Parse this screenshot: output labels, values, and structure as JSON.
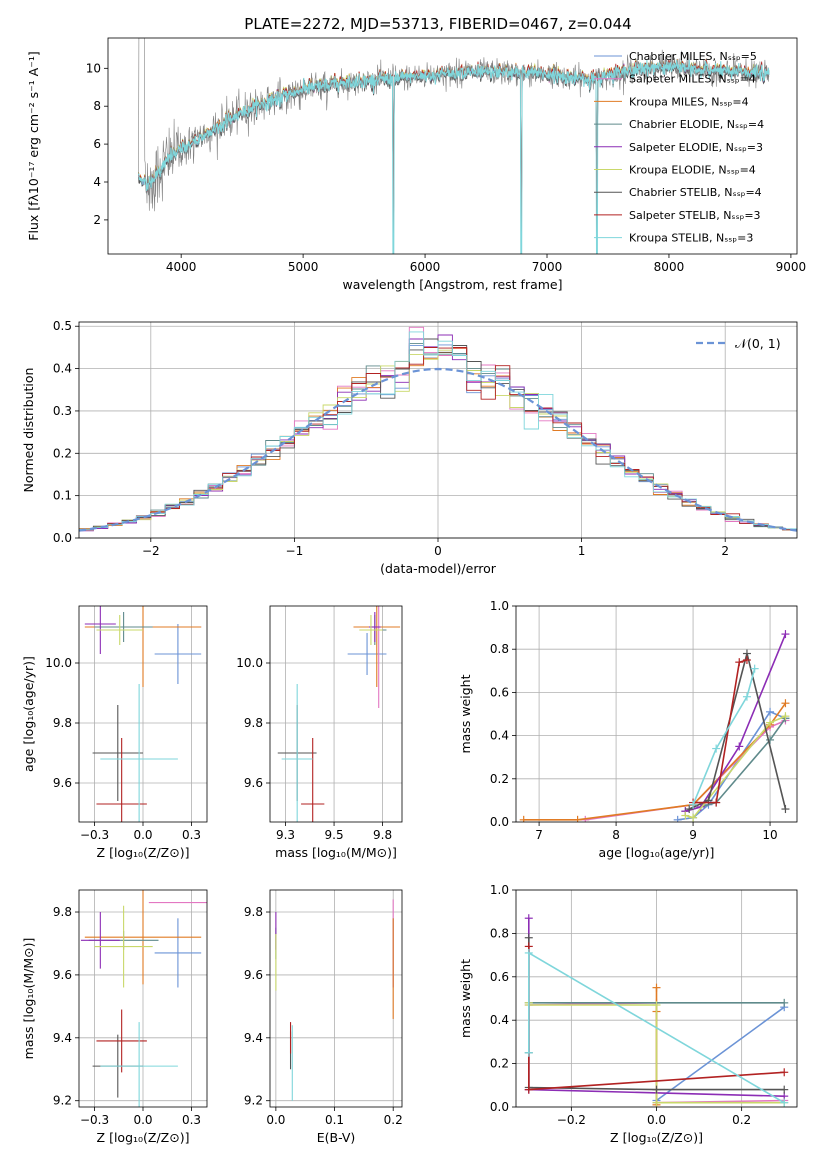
{
  "title": "PLATE=2272, MJD=53713, FIBERID=0467, z=0.044",
  "model_colors": [
    "#6b93d6",
    "#e377c2",
    "#e07b24",
    "#5f8a8b",
    "#8c2db5",
    "#c9d86a",
    "#555555",
    "#b22222",
    "#7fd6db"
  ],
  "chart_data": [
    {
      "id": "spectrum",
      "type": "line",
      "xlabel": "wavelength [Angstrom, rest frame]",
      "ylabel": "Flux [fλ10⁻¹⁷ erg cm⁻² s⁻¹ A⁻¹]",
      "xlim": [
        3400,
        9050
      ],
      "ylim": [
        0.2,
        11.6
      ],
      "xticks": [
        4000,
        5000,
        6000,
        7000,
        8000,
        9000
      ],
      "yticks": [
        2,
        4,
        6,
        8,
        10
      ],
      "legend_position": "top-right",
      "series": [
        {
          "name": "Chabrier MILES, Nₛₛₚ=5"
        },
        {
          "name": "Salpeter MILES, Nₛₛₚ=4"
        },
        {
          "name": "Kroupa MILES, Nₛₛₚ=4"
        },
        {
          "name": "Chabrier ELODIE, Nₛₛₚ=4"
        },
        {
          "name": "Salpeter ELODIE, Nₛₛₚ=3"
        },
        {
          "name": "Kroupa ELODIE, Nₛₛₚ=4"
        },
        {
          "name": "Chabrier STELIB, Nₛₛₚ=4"
        },
        {
          "name": "Salpeter STELIB, Nₛₛₚ=3"
        },
        {
          "name": "Kroupa STELIB, Nₛₛₚ=3"
        }
      ],
      "continuum": {
        "x": [
          3650,
          3750,
          3900,
          4000,
          4200,
          4400,
          4600,
          4800,
          5000,
          5300,
          5600,
          6000,
          6300,
          6600,
          7000,
          7200,
          7400,
          7600,
          7800,
          8000,
          8300,
          8600,
          8820
        ],
        "y": [
          4.2,
          3.9,
          5.3,
          5.7,
          6.5,
          7.3,
          8.0,
          8.4,
          8.9,
          9.2,
          9.4,
          9.6,
          9.8,
          9.8,
          9.7,
          9.5,
          9.4,
          9.8,
          10.0,
          10.1,
          9.9,
          9.8,
          9.7
        ]
      },
      "observed_color": "#808080",
      "model_color": "#7fd6db"
    },
    {
      "id": "residuals",
      "type": "histogram",
      "xlabel": "(data-model)/error",
      "ylabel": "Normed distribution",
      "xlim": [
        -2.5,
        2.5
      ],
      "ylim": [
        0,
        0.51
      ],
      "xticks": [
        -2,
        -1,
        0,
        1,
        2
      ],
      "yticks": [
        0.0,
        0.1,
        0.2,
        0.3,
        0.4,
        0.5
      ],
      "bin_width": 0.1,
      "bin_start": -2.5,
      "reference": {
        "name": "𝒩(0, 1)",
        "mean": 0,
        "sigma": 1,
        "color": "#6b93d6"
      },
      "legend_position": "top-right",
      "grid": true
    },
    {
      "id": "age-Z",
      "type": "scatter-errorbar",
      "xlabel": "Z [log₁₀(Z/Z⊙)]",
      "ylabel": "age  [log₁₀(age/yr)]",
      "xlim": [
        -0.33,
        0.33
      ],
      "ylim": [
        9.47,
        10.19
      ],
      "xticks": [
        -0.25,
        0.0,
        0.25
      ],
      "yticks": [
        9.6,
        9.8,
        10.0
      ],
      "grid": true,
      "points": [
        {
          "x": 0.18,
          "y": 10.03,
          "xerr": 0.12,
          "yerr": 0.1,
          "c": 0
        },
        {
          "x": 0.18,
          "y": 10.12,
          "xerr": 0.12,
          "yerr": 0.0,
          "c": 1
        },
        {
          "x": 0.0,
          "y": 10.12,
          "xerr": 0.3,
          "yerr": 0.2,
          "c": 2
        },
        {
          "x": -0.1,
          "y": 10.12,
          "xerr": 0.15,
          "yerr": 0.05,
          "c": 3
        },
        {
          "x": -0.22,
          "y": 10.13,
          "xerr": 0.08,
          "yerr": 0.1,
          "c": 4
        },
        {
          "x": -0.12,
          "y": 10.11,
          "xerr": 0.12,
          "yerr": 0.05,
          "c": 5
        },
        {
          "x": -0.13,
          "y": 9.7,
          "xerr": 0.13,
          "yerr": 0.16,
          "c": 6
        },
        {
          "x": -0.11,
          "y": 9.53,
          "xerr": 0.13,
          "yerr": 0.22,
          "c": 7
        },
        {
          "x": -0.02,
          "y": 9.68,
          "xerr": 0.2,
          "yerr": 0.25,
          "c": 8
        }
      ]
    },
    {
      "id": "age-mass",
      "type": "scatter-errorbar",
      "xlabel": "mass [log₁₀(M/M⊙)]",
      "ylabel": "",
      "xlim": [
        9.17,
        9.85
      ],
      "ylim": [
        9.47,
        10.19
      ],
      "xticks": [
        9.25,
        9.5,
        9.75
      ],
      "yticks": [
        9.6,
        9.8,
        10.0
      ],
      "grid": true,
      "points": [
        {
          "x": 9.67,
          "y": 10.03,
          "xerr": 0.1,
          "yerr": 0.07,
          "c": 0
        },
        {
          "x": 9.73,
          "y": 10.12,
          "xerr": 0.1,
          "yerr": 0.27,
          "c": 1
        },
        {
          "x": 9.72,
          "y": 10.12,
          "xerr": 0.12,
          "yerr": 0.2,
          "c": 2
        },
        {
          "x": 9.71,
          "y": 10.11,
          "xerr": 0.06,
          "yerr": 0.05,
          "c": 3
        },
        {
          "x": 9.71,
          "y": 10.12,
          "xerr": 0.03,
          "yerr": 0.05,
          "c": 4
        },
        {
          "x": 9.69,
          "y": 10.11,
          "xerr": 0.06,
          "yerr": 0.05,
          "c": 5
        },
        {
          "x": 9.31,
          "y": 9.7,
          "xerr": 0.1,
          "yerr": 0.16,
          "c": 6
        },
        {
          "x": 9.39,
          "y": 9.53,
          "xerr": 0.06,
          "yerr": 0.22,
          "c": 7
        },
        {
          "x": 9.31,
          "y": 9.68,
          "xerr": 0.08,
          "yerr": 0.25,
          "c": 8
        }
      ]
    },
    {
      "id": "weight-age",
      "type": "line",
      "xlabel": "age  [log₁₀(age/yr)]",
      "ylabel": "mass weight",
      "xlim": [
        6.7,
        10.35
      ],
      "ylim": [
        0,
        1.0
      ],
      "xticks": [
        7,
        8,
        9,
        10
      ],
      "yticks": [
        0.0,
        0.2,
        0.4,
        0.6,
        0.8,
        1.0
      ],
      "grid": true,
      "series": [
        {
          "c": 0,
          "x": [
            8.8,
            9.0,
            9.2,
            10.0,
            10.2
          ],
          "y": [
            0.01,
            0.02,
            0.08,
            0.51,
            0.48
          ]
        },
        {
          "c": 1,
          "x": [
            7.6,
            9.0,
            10.0,
            10.2
          ],
          "y": [
            0.01,
            0.08,
            0.44,
            0.47
          ]
        },
        {
          "c": 2,
          "x": [
            6.8,
            7.5,
            9.0,
            10.0,
            10.2
          ],
          "y": [
            0.01,
            0.01,
            0.08,
            0.45,
            0.55
          ]
        },
        {
          "c": 3,
          "x": [
            8.9,
            9.3,
            10.0,
            10.2
          ],
          "y": [
            0.05,
            0.09,
            0.38,
            0.48
          ]
        },
        {
          "c": 4,
          "x": [
            8.9,
            9.1,
            9.6,
            10.2
          ],
          "y": [
            0.05,
            0.07,
            0.35,
            0.87
          ]
        },
        {
          "c": 5,
          "x": [
            8.9,
            9.0,
            10.0,
            10.2
          ],
          "y": [
            0.03,
            0.02,
            0.46,
            0.49
          ]
        },
        {
          "c": 6,
          "x": [
            8.95,
            9.2,
            9.7,
            10.2
          ],
          "y": [
            0.06,
            0.1,
            0.78,
            0.06
          ]
        },
        {
          "c": 7,
          "x": [
            9.0,
            9.3,
            9.6,
            9.7
          ],
          "y": [
            0.09,
            0.09,
            0.74,
            0.75
          ]
        },
        {
          "c": 8,
          "x": [
            9.0,
            9.3,
            9.7,
            9.8
          ],
          "y": [
            0.08,
            0.34,
            0.58,
            0.71
          ]
        }
      ]
    },
    {
      "id": "mass-Z",
      "type": "scatter-errorbar",
      "xlabel": "Z [log₁₀(Z/Z⊙)]",
      "ylabel": "mass [log₁₀(M/M⊙)]",
      "xlim": [
        -0.33,
        0.33
      ],
      "ylim": [
        9.18,
        9.87
      ],
      "xticks": [
        -0.25,
        0.0,
        0.25
      ],
      "yticks": [
        9.2,
        9.4,
        9.6,
        9.8
      ],
      "grid": true,
      "points": [
        {
          "x": 0.18,
          "y": 9.67,
          "xerr": 0.12,
          "yerr": 0.11,
          "c": 0
        },
        {
          "x": 0.18,
          "y": 9.83,
          "xerr": 0.15,
          "yerr": 0.0,
          "c": 1
        },
        {
          "x": 0.0,
          "y": 9.72,
          "xerr": 0.3,
          "yerr": 0.15,
          "c": 2
        },
        {
          "x": -0.1,
          "y": 9.71,
          "xerr": 0.18,
          "yerr": 0.03,
          "c": 3
        },
        {
          "x": -0.22,
          "y": 9.71,
          "xerr": 0.1,
          "yerr": 0.09,
          "c": 4
        },
        {
          "x": -0.1,
          "y": 9.69,
          "xerr": 0.15,
          "yerr": 0.13,
          "c": 5
        },
        {
          "x": -0.13,
          "y": 9.31,
          "xerr": 0.13,
          "yerr": 0.1,
          "c": 6
        },
        {
          "x": -0.11,
          "y": 9.39,
          "xerr": 0.13,
          "yerr": 0.1,
          "c": 7
        },
        {
          "x": -0.02,
          "y": 9.31,
          "xerr": 0.2,
          "yerr": 0.14,
          "c": 8
        }
      ]
    },
    {
      "id": "mass-EBV",
      "type": "scatter-errorbar",
      "xlabel": "E(B-V)",
      "ylabel": "",
      "xlim": [
        -0.01,
        0.215
      ],
      "ylim": [
        9.18,
        9.87
      ],
      "xticks": [
        0.0,
        0.1,
        0.2
      ],
      "yticks": [
        9.2,
        9.4,
        9.6,
        9.8
      ],
      "grid": true,
      "points": [
        {
          "x": 0.2,
          "y": 9.67,
          "xerr": 0,
          "yerr": 0.11,
          "c": 0
        },
        {
          "x": 0.2,
          "y": 9.7,
          "xerr": 0,
          "yerr": 0.14,
          "c": 1
        },
        {
          "x": 0.2,
          "y": 9.62,
          "xerr": 0,
          "yerr": 0.16,
          "c": 2
        },
        {
          "x": 0.0,
          "y": 9.7,
          "xerr": 0,
          "yerr": 0.05,
          "c": 3
        },
        {
          "x": 0.0,
          "y": 9.74,
          "xerr": 0,
          "yerr": 0.06,
          "c": 4
        },
        {
          "x": 0.0,
          "y": 9.64,
          "xerr": 0,
          "yerr": 0.09,
          "c": 5
        },
        {
          "x": 0.025,
          "y": 9.36,
          "xerr": 0,
          "yerr": 0.06,
          "c": 6
        },
        {
          "x": 0.025,
          "y": 9.4,
          "xerr": 0,
          "yerr": 0.05,
          "c": 7
        },
        {
          "x": 0.028,
          "y": 9.32,
          "xerr": 0,
          "yerr": 0.12,
          "c": 8
        }
      ]
    },
    {
      "id": "weight-Z",
      "type": "line",
      "xlabel": "Z [log₁₀(Z/Z⊙)]",
      "ylabel": "mass weight",
      "xlim": [
        -0.33,
        0.33
      ],
      "ylim": [
        0,
        1.0
      ],
      "xticks": [
        -0.2,
        0.0,
        0.2
      ],
      "yticks": [
        0.0,
        0.2,
        0.4,
        0.6,
        0.8,
        1.0
      ],
      "grid": true,
      "series": [
        {
          "c": 0,
          "x": [
            0.0,
            0.3
          ],
          "y": [
            0.03,
            0.46
          ]
        },
        {
          "c": 1,
          "x": [
            -0.3,
            -0.3,
            0.0,
            0.0,
            0.3
          ],
          "y": [
            0.08,
            0.47,
            0.48,
            0.02,
            0.03
          ]
        },
        {
          "c": 2,
          "x": [
            0.0,
            0.0,
            0.0
          ],
          "y": [
            0.01,
            0.44,
            0.55
          ]
        },
        {
          "c": 3,
          "x": [
            -0.3,
            -0.3,
            0.3
          ],
          "y": [
            0.25,
            0.48,
            0.48
          ]
        },
        {
          "c": 4,
          "x": [
            -0.3,
            -0.3,
            0.3
          ],
          "y": [
            0.87,
            0.08,
            0.05
          ]
        },
        {
          "c": 5,
          "x": [
            -0.3,
            -0.3,
            0.0,
            0.0,
            0.3
          ],
          "y": [
            0.48,
            0.47,
            0.47,
            0.02,
            0.02
          ]
        },
        {
          "c": 6,
          "x": [
            -0.3,
            -0.3,
            0.0,
            0.3
          ],
          "y": [
            0.78,
            0.09,
            0.08,
            0.08
          ]
        },
        {
          "c": 7,
          "x": [
            -0.3,
            -0.3,
            0.3
          ],
          "y": [
            0.74,
            0.08,
            0.16
          ]
        },
        {
          "c": 8,
          "x": [
            -0.3,
            -0.3,
            0.3
          ],
          "y": [
            0.25,
            0.71,
            0.02
          ]
        }
      ]
    }
  ]
}
